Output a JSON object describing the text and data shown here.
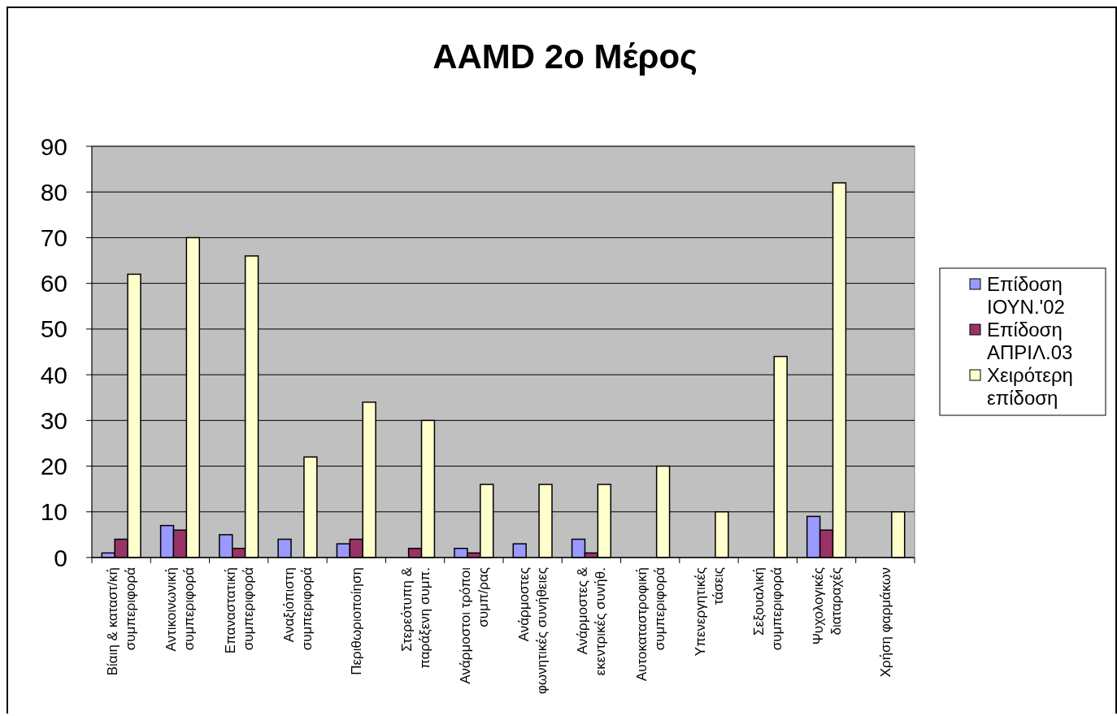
{
  "chart_data": {
    "type": "bar",
    "title": "AAMD   2ο Μέρος",
    "categories": [
      "Βίαιη & καταστ/κή\nσυμπεριφορά",
      "Αντικοινωνική\nσυμπεριφορά",
      "Επαναστατική\nσυμπεριφορά",
      "Αναξιόπιστη\nσυμπεριφορά",
      "Περιθωριοποίηση",
      "Στερεότυπη &\nπαράξενη συμπ.",
      "Ανάρμοστοι τρόποι\nσυμπ/ρας",
      "Ανάρμοστες\nφωνητικές συνήθειες",
      "Ανάρμοστες &\nεκεντρικές συνήθ.",
      "Αυτοκαταστροφική\nσυμπεριφορά",
      "Υπενεργητικές\nτάσεις",
      "Σεξουαλική\nσυμπεριφορά",
      "Ψυχολογικές\nδιαταραχές",
      "Χρήση φαρμάκων"
    ],
    "series": [
      {
        "name": "Επίδοση\nΙΟΥΝ.'02",
        "color": "#9999ff",
        "values": [
          1,
          7,
          5,
          4,
          3,
          0,
          2,
          3,
          4,
          0,
          0,
          0,
          9,
          0
        ]
      },
      {
        "name": "Επίδοση\nΑΠΡΙΛ.03",
        "color": "#993366",
        "values": [
          4,
          6,
          2,
          0,
          4,
          2,
          1,
          0,
          1,
          0,
          0,
          0,
          6,
          0
        ]
      },
      {
        "name": "Χειρότερη\nεπίδοση",
        "color": "#ffffcc",
        "values": [
          62,
          70,
          66,
          22,
          34,
          30,
          16,
          16,
          16,
          20,
          10,
          44,
          82,
          10
        ]
      }
    ],
    "ylim": [
      0,
      90
    ],
    "yticks": [
      0,
      10,
      20,
      30,
      40,
      50,
      60,
      70,
      80,
      90
    ],
    "grid": "y",
    "legend": "right"
  }
}
